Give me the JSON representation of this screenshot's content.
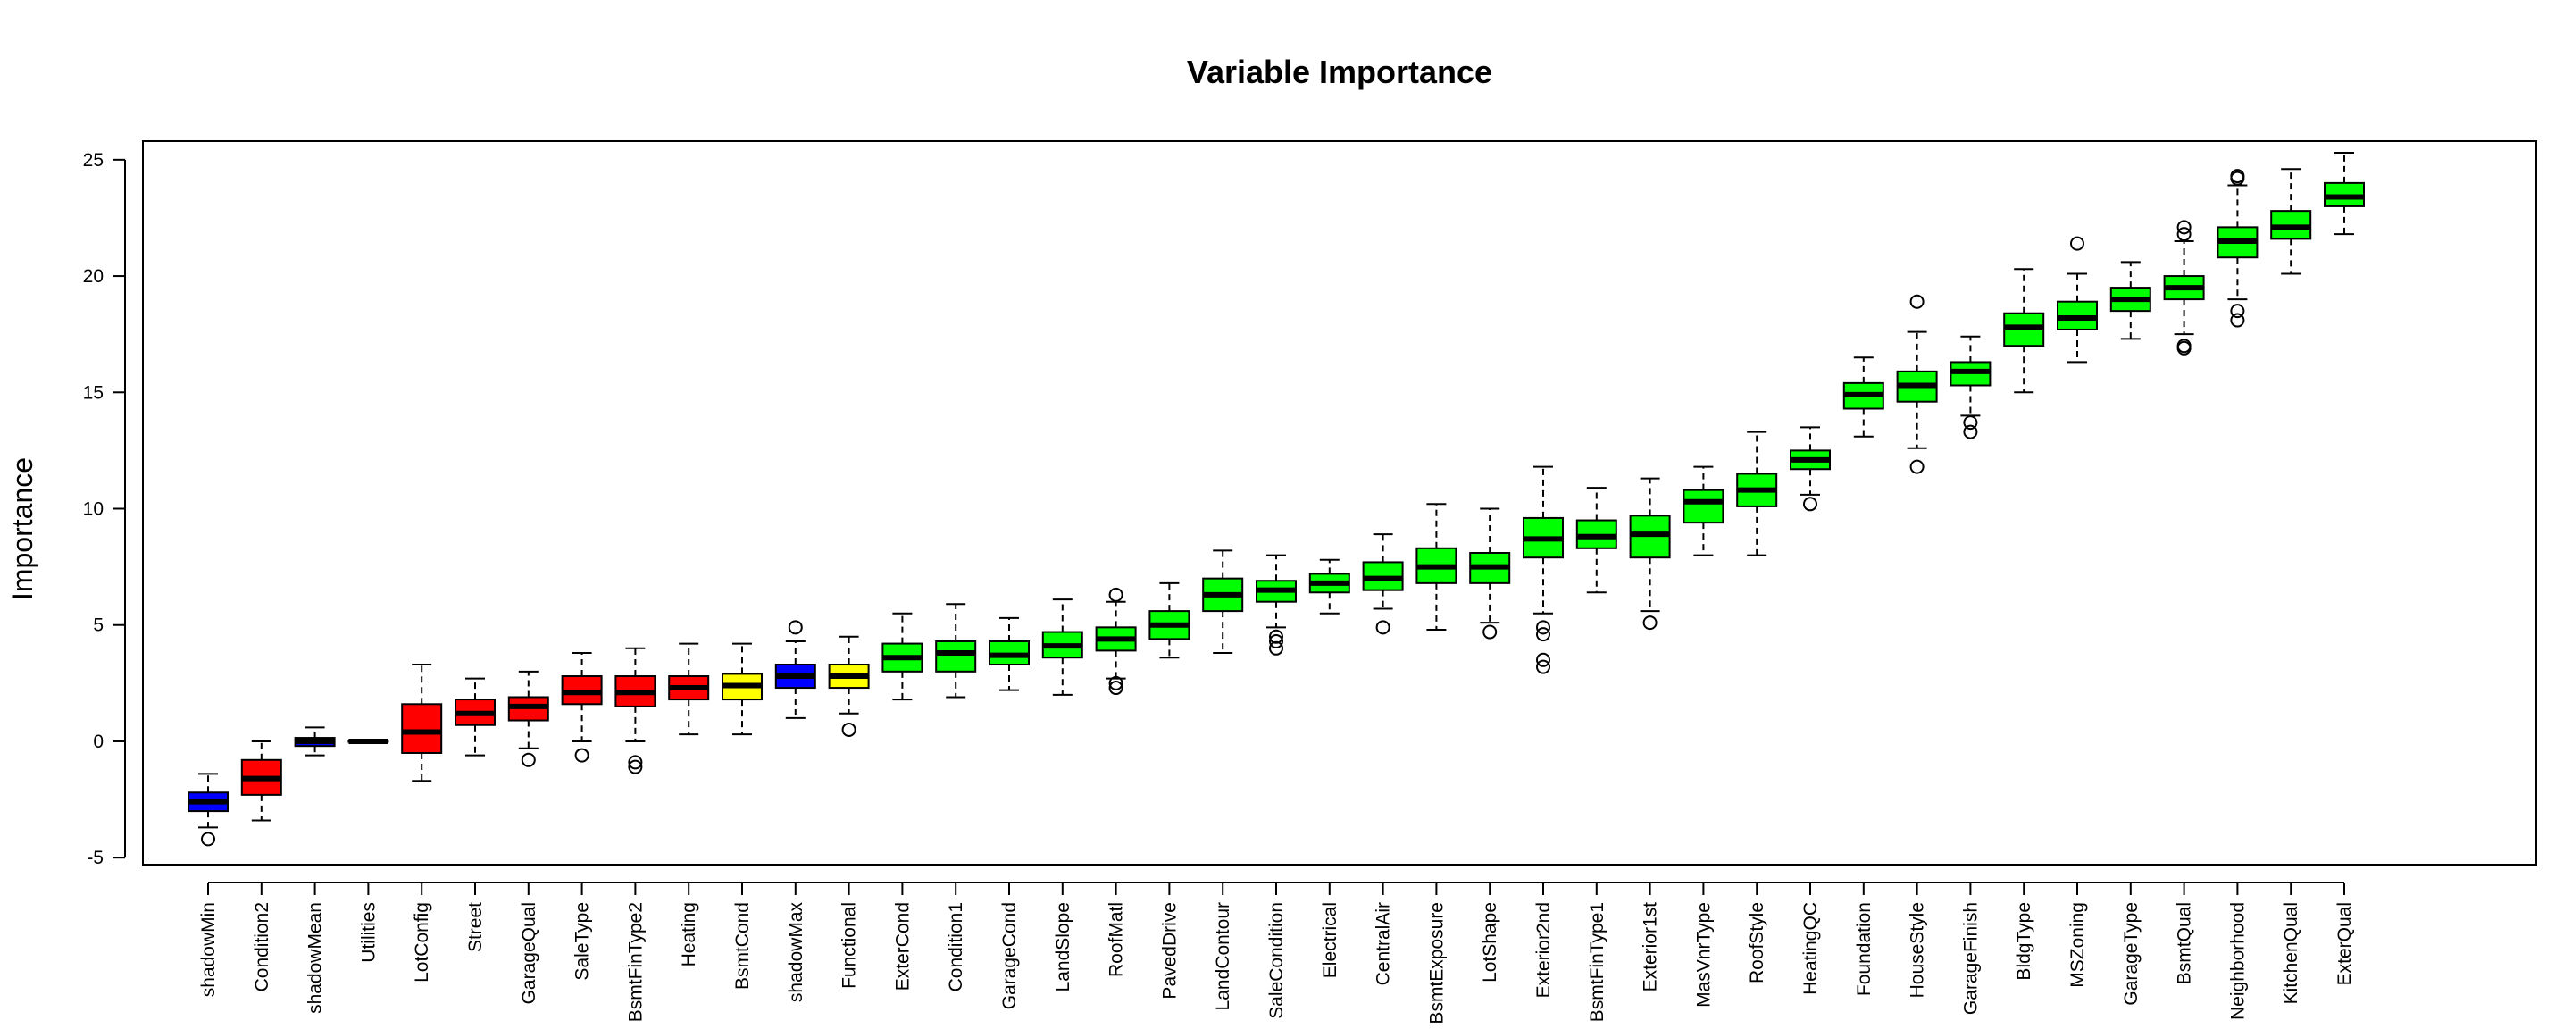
{
  "chart_data": {
    "type": "boxplot",
    "title": "Variable Importance",
    "xlabel": "",
    "ylabel": "Importance",
    "ylim": [
      -5.3,
      25.8
    ],
    "yticks": [
      -5,
      0,
      5,
      10,
      15,
      20,
      25
    ],
    "colors": {
      "rejected": "#ff0000",
      "tentative": "#ffff00",
      "confirmed": "#00ff00",
      "shadow": "#0000ff"
    },
    "boxes": [
      {
        "label": "shadowMin",
        "status": "shadow",
        "whisker_low": -3.7,
        "q1": -3.0,
        "median": -2.6,
        "q3": -2.2,
        "whisker_high": -1.4,
        "outliers": [
          -4.2
        ]
      },
      {
        "label": "Condition2",
        "status": "rejected",
        "whisker_low": -3.4,
        "q1": -2.3,
        "median": -1.6,
        "q3": -0.8,
        "whisker_high": 0.0,
        "outliers": []
      },
      {
        "label": "shadowMean",
        "status": "shadow",
        "whisker_low": -0.6,
        "q1": -0.2,
        "median": 0.0,
        "q3": 0.15,
        "whisker_high": 0.6,
        "outliers": []
      },
      {
        "label": "Utilities",
        "status": "shadow",
        "whisker_low": 0.0,
        "q1": 0.0,
        "median": 0.0,
        "q3": 0.0,
        "whisker_high": 0.0,
        "outliers": []
      },
      {
        "label": "LotConfig",
        "status": "rejected",
        "whisker_low": -1.7,
        "q1": -0.5,
        "median": 0.4,
        "q3": 1.6,
        "whisker_high": 3.3,
        "outliers": []
      },
      {
        "label": "Street",
        "status": "rejected",
        "whisker_low": -0.6,
        "q1": 0.7,
        "median": 1.2,
        "q3": 1.8,
        "whisker_high": 2.7,
        "outliers": []
      },
      {
        "label": "GarageQual",
        "status": "rejected",
        "whisker_low": -0.3,
        "q1": 0.9,
        "median": 1.5,
        "q3": 1.9,
        "whisker_high": 3.0,
        "outliers": [
          -0.8
        ]
      },
      {
        "label": "SaleType",
        "status": "rejected",
        "whisker_low": 0.0,
        "q1": 1.6,
        "median": 2.1,
        "q3": 2.8,
        "whisker_high": 3.8,
        "outliers": [
          -0.6
        ]
      },
      {
        "label": "BsmtFinType2",
        "status": "rejected",
        "whisker_low": 0.0,
        "q1": 1.5,
        "median": 2.1,
        "q3": 2.8,
        "whisker_high": 4.0,
        "outliers": [
          -0.9,
          -1.1
        ]
      },
      {
        "label": "Heating",
        "status": "rejected",
        "whisker_low": 0.3,
        "q1": 1.8,
        "median": 2.3,
        "q3": 2.8,
        "whisker_high": 4.2,
        "outliers": []
      },
      {
        "label": "BsmtCond",
        "status": "tentative",
        "whisker_low": 0.3,
        "q1": 1.8,
        "median": 2.4,
        "q3": 2.9,
        "whisker_high": 4.2,
        "outliers": []
      },
      {
        "label": "shadowMax",
        "status": "shadow",
        "whisker_low": 1.0,
        "q1": 2.3,
        "median": 2.8,
        "q3": 3.3,
        "whisker_high": 4.3,
        "outliers": [
          4.9
        ]
      },
      {
        "label": "Functional",
        "status": "tentative",
        "whisker_low": 1.2,
        "q1": 2.3,
        "median": 2.8,
        "q3": 3.3,
        "whisker_high": 4.5,
        "outliers": [
          0.5
        ]
      },
      {
        "label": "ExterCond",
        "status": "confirmed",
        "whisker_low": 1.8,
        "q1": 3.0,
        "median": 3.6,
        "q3": 4.2,
        "whisker_high": 5.5,
        "outliers": []
      },
      {
        "label": "Condition1",
        "status": "confirmed",
        "whisker_low": 1.9,
        "q1": 3.0,
        "median": 3.8,
        "q3": 4.3,
        "whisker_high": 5.9,
        "outliers": []
      },
      {
        "label": "GarageCond",
        "status": "confirmed",
        "whisker_low": 2.2,
        "q1": 3.3,
        "median": 3.7,
        "q3": 4.3,
        "whisker_high": 5.3,
        "outliers": []
      },
      {
        "label": "LandSlope",
        "status": "confirmed",
        "whisker_low": 2.0,
        "q1": 3.6,
        "median": 4.1,
        "q3": 4.7,
        "whisker_high": 6.1,
        "outliers": []
      },
      {
        "label": "RoofMatl",
        "status": "confirmed",
        "whisker_low": 2.7,
        "q1": 3.9,
        "median": 4.4,
        "q3": 4.9,
        "whisker_high": 6.0,
        "outliers": [
          2.3,
          2.5,
          6.3
        ]
      },
      {
        "label": "PavedDrive",
        "status": "confirmed",
        "whisker_low": 3.6,
        "q1": 4.4,
        "median": 5.0,
        "q3": 5.6,
        "whisker_high": 6.8,
        "outliers": []
      },
      {
        "label": "LandContour",
        "status": "confirmed",
        "whisker_low": 3.8,
        "q1": 5.6,
        "median": 6.3,
        "q3": 7.0,
        "whisker_high": 8.2,
        "outliers": []
      },
      {
        "label": "SaleCondition",
        "status": "confirmed",
        "whisker_low": 4.9,
        "q1": 6.0,
        "median": 6.5,
        "q3": 6.9,
        "whisker_high": 8.0,
        "outliers": [
          4.0,
          4.3,
          4.5
        ]
      },
      {
        "label": "Electrical",
        "status": "confirmed",
        "whisker_low": 5.5,
        "q1": 6.4,
        "median": 6.8,
        "q3": 7.2,
        "whisker_high": 7.8,
        "outliers": []
      },
      {
        "label": "CentralAir",
        "status": "confirmed",
        "whisker_low": 5.7,
        "q1": 6.5,
        "median": 7.0,
        "q3": 7.7,
        "whisker_high": 8.9,
        "outliers": [
          4.9
        ]
      },
      {
        "label": "BsmtExposure",
        "status": "confirmed",
        "whisker_low": 4.8,
        "q1": 6.8,
        "median": 7.5,
        "q3": 8.3,
        "whisker_high": 10.2,
        "outliers": []
      },
      {
        "label": "LotShape",
        "status": "confirmed",
        "whisker_low": 5.1,
        "q1": 6.8,
        "median": 7.5,
        "q3": 8.1,
        "whisker_high": 10.0,
        "outliers": [
          4.7
        ]
      },
      {
        "label": "Exterior2nd",
        "status": "confirmed",
        "whisker_low": 5.5,
        "q1": 7.9,
        "median": 8.7,
        "q3": 9.6,
        "whisker_high": 11.8,
        "outliers": [
          3.2,
          3.5,
          4.6,
          4.9
        ]
      },
      {
        "label": "BsmtFinType1",
        "status": "confirmed",
        "whisker_low": 6.4,
        "q1": 8.3,
        "median": 8.8,
        "q3": 9.5,
        "whisker_high": 10.9,
        "outliers": []
      },
      {
        "label": "Exterior1st",
        "status": "confirmed",
        "whisker_low": 5.6,
        "q1": 7.9,
        "median": 8.9,
        "q3": 9.7,
        "whisker_high": 11.3,
        "outliers": [
          5.1
        ]
      },
      {
        "label": "MasVnrType",
        "status": "confirmed",
        "whisker_low": 8.0,
        "q1": 9.4,
        "median": 10.3,
        "q3": 10.8,
        "whisker_high": 11.8,
        "outliers": []
      },
      {
        "label": "RoofStyle",
        "status": "confirmed",
        "whisker_low": 8.0,
        "q1": 10.1,
        "median": 10.8,
        "q3": 11.5,
        "whisker_high": 13.3,
        "outliers": []
      },
      {
        "label": "HeatingQC",
        "status": "confirmed",
        "whisker_low": 10.6,
        "q1": 11.7,
        "median": 12.1,
        "q3": 12.5,
        "whisker_high": 13.5,
        "outliers": [
          10.2
        ]
      },
      {
        "label": "Foundation",
        "status": "confirmed",
        "whisker_low": 13.1,
        "q1": 14.3,
        "median": 14.9,
        "q3": 15.4,
        "whisker_high": 16.5,
        "outliers": []
      },
      {
        "label": "HouseStyle",
        "status": "confirmed",
        "whisker_low": 12.6,
        "q1": 14.6,
        "median": 15.3,
        "q3": 15.9,
        "whisker_high": 17.6,
        "outliers": [
          11.8,
          18.9
        ]
      },
      {
        "label": "GarageFinish",
        "status": "confirmed",
        "whisker_low": 14.0,
        "q1": 15.3,
        "median": 15.9,
        "q3": 16.3,
        "whisker_high": 17.4,
        "outliers": [
          13.3,
          13.7
        ]
      },
      {
        "label": "BldgType",
        "status": "confirmed",
        "whisker_low": 15.0,
        "q1": 17.0,
        "median": 17.8,
        "q3": 18.4,
        "whisker_high": 20.3,
        "outliers": []
      },
      {
        "label": "MSZoning",
        "status": "confirmed",
        "whisker_low": 16.3,
        "q1": 17.7,
        "median": 18.2,
        "q3": 18.9,
        "whisker_high": 20.1,
        "outliers": [
          21.4
        ]
      },
      {
        "label": "GarageType",
        "status": "confirmed",
        "whisker_low": 17.3,
        "q1": 18.5,
        "median": 19.0,
        "q3": 19.5,
        "whisker_high": 20.6,
        "outliers": []
      },
      {
        "label": "BsmtQual",
        "status": "confirmed",
        "whisker_low": 17.5,
        "q1": 19.0,
        "median": 19.5,
        "q3": 20.0,
        "whisker_high": 21.5,
        "outliers": [
          16.9,
          17.0,
          21.8,
          22.1
        ]
      },
      {
        "label": "Neighborhood",
        "status": "confirmed",
        "whisker_low": 19.0,
        "q1": 20.8,
        "median": 21.5,
        "q3": 22.1,
        "whisker_high": 23.9,
        "outliers": [
          18.1,
          18.5,
          24.2,
          24.3
        ]
      },
      {
        "label": "KitchenQual",
        "status": "confirmed",
        "whisker_low": 20.1,
        "q1": 21.6,
        "median": 22.1,
        "q3": 22.8,
        "whisker_high": 24.6,
        "outliers": []
      },
      {
        "label": "ExterQual",
        "status": "confirmed",
        "whisker_low": 21.8,
        "q1": 23.0,
        "median": 23.4,
        "q3": 24.0,
        "whisker_high": 25.3,
        "outliers": []
      }
    ]
  }
}
